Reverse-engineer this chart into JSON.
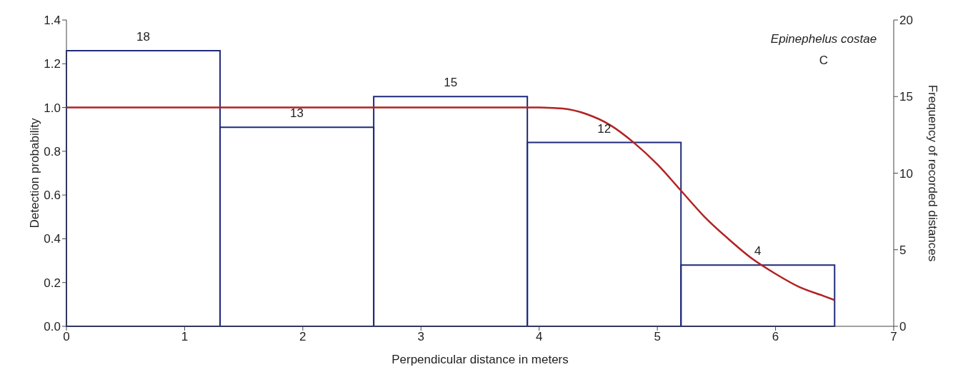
{
  "chart_data": {
    "type": "histogram",
    "xlabel": "Perpendicular distance in meters",
    "ylabel": "Detection probability",
    "y2label": "Frequency of recorded distances",
    "annotations": [
      "Epinephelus costae",
      "C"
    ],
    "series": [
      {
        "axis": "y2",
        "color": "#1f2a7a",
        "bins": [
          0,
          1.3,
          2.6,
          3.9,
          5.2,
          6.5
        ],
        "values": [
          18,
          13,
          15,
          12,
          4
        ],
        "value_labels": [
          "18",
          "13",
          "15",
          "12",
          "4"
        ]
      },
      {
        "type": "line",
        "color": "#b22222",
        "x": [
          0,
          1,
          2,
          3,
          4,
          4.2,
          4.4,
          4.6,
          4.8,
          5.0,
          5.2,
          5.4,
          5.6,
          5.8,
          6.0,
          6.2,
          6.4,
          6.5
        ],
        "values": [
          1.0,
          1.0,
          1.0,
          1.0,
          1.0,
          0.995,
          0.97,
          0.92,
          0.84,
          0.74,
          0.62,
          0.5,
          0.4,
          0.31,
          0.24,
          0.18,
          0.14,
          0.12
        ]
      }
    ],
    "marker": "none",
    "grid": false,
    "xlim": [
      0,
      7
    ],
    "xticks": [
      0,
      1,
      2,
      3,
      4,
      5,
      6,
      7
    ],
    "ylim": [
      0,
      1.4
    ],
    "yticks": [
      {
        "value": 0,
        "label": "0.0"
      },
      {
        "value": 0.2,
        "label": "0.2"
      },
      {
        "value": 0.4,
        "label": "0.4"
      },
      {
        "value": 0.6,
        "label": "0.6"
      },
      {
        "value": 0.8,
        "label": "0.8"
      },
      {
        "value": 1.0,
        "label": "1.0"
      },
      {
        "value": 1.2,
        "label": "1.2"
      },
      {
        "value": 1.4,
        "label": "1.4"
      }
    ],
    "y2lim": [
      0,
      20
    ],
    "y2ticks": [
      0,
      5,
      10,
      15,
      20
    ]
  }
}
